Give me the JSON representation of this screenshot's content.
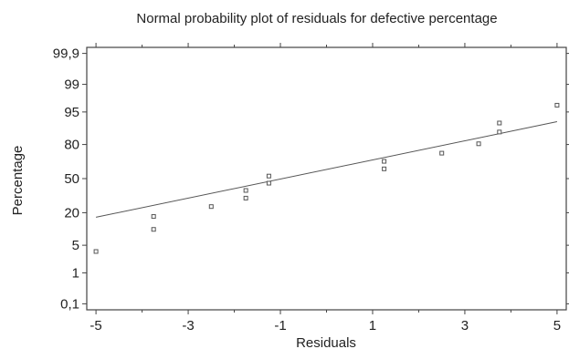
{
  "chart_data": {
    "type": "scatter",
    "title": "Normal probability plot of residuals for defective percentage",
    "xlabel": "Residuals",
    "ylabel": "Percentage",
    "xlim": [
      -5.2,
      5.2
    ],
    "x_ticks": [
      -5,
      -3,
      -1,
      1,
      3,
      5
    ],
    "x_tick_labels": [
      "-5",
      "-3",
      "-1",
      "1",
      "3",
      "5"
    ],
    "y_scale": "normal-probability",
    "ylim": [
      0.06,
      99.94
    ],
    "y_ticks": [
      0.1,
      1,
      5,
      20,
      50,
      80,
      95,
      99,
      99.9
    ],
    "y_tick_labels": [
      "0,1",
      "1",
      "5",
      "20",
      "50",
      "80",
      "95",
      "99",
      "99,9"
    ],
    "grid": false,
    "points": [
      {
        "x": -5.0,
        "y": 3.6
      },
      {
        "x": -3.75,
        "y": 10.5
      },
      {
        "x": -3.75,
        "y": 17.5
      },
      {
        "x": -2.5,
        "y": 24.5
      },
      {
        "x": -1.75,
        "y": 31.5
      },
      {
        "x": -1.75,
        "y": 38.5
      },
      {
        "x": -1.25,
        "y": 45.5
      },
      {
        "x": -1.25,
        "y": 52.5
      },
      {
        "x": 1.25,
        "y": 59.5
      },
      {
        "x": 1.25,
        "y": 66.5
      },
      {
        "x": 2.5,
        "y": 73.5
      },
      {
        "x": 3.3,
        "y": 80.5
      },
      {
        "x": 3.75,
        "y": 87.5
      },
      {
        "x": 3.75,
        "y": 91.5
      },
      {
        "x": 5.0,
        "y": 96.5
      }
    ],
    "fit_line": {
      "x": [
        -5.0,
        5.0
      ],
      "y": [
        17.0,
        92.0
      ]
    }
  }
}
